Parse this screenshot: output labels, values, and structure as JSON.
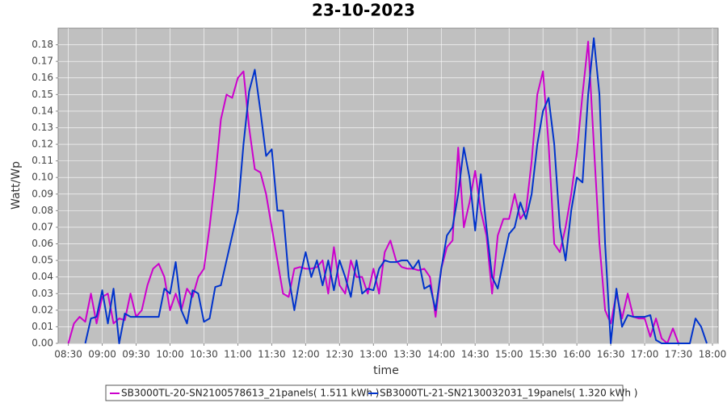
{
  "chart_data": {
    "type": "line",
    "title": "23-10-2023",
    "x_label": "time",
    "y_label": "Watt/Wp",
    "x": [
      510,
      515,
      520,
      525,
      530,
      535,
      540,
      545,
      550,
      555,
      560,
      565,
      570,
      575,
      580,
      585,
      590,
      595,
      600,
      605,
      610,
      615,
      620,
      625,
      630,
      635,
      640,
      645,
      650,
      655,
      660,
      665,
      670,
      675,
      680,
      685,
      690,
      695,
      700,
      705,
      710,
      715,
      720,
      725,
      730,
      735,
      740,
      745,
      750,
      755,
      760,
      765,
      770,
      775,
      780,
      785,
      790,
      795,
      800,
      805,
      810,
      815,
      820,
      825,
      830,
      835,
      840,
      845,
      850,
      855,
      860,
      865,
      870,
      875,
      880,
      885,
      890,
      895,
      900,
      905,
      910,
      915,
      920,
      925,
      930,
      935,
      940,
      945,
      950,
      955,
      960,
      965,
      970,
      975,
      980,
      985,
      990,
      995,
      1000,
      1005,
      1010,
      1015,
      1020,
      1025,
      1030,
      1035,
      1040,
      1045,
      1050,
      1055,
      1060,
      1065,
      1070,
      1075
    ],
    "series": [
      {
        "name": "SB3000TL-20-SN2100578613_21panels( 1.511 kWh )",
        "color": "#cc00cc",
        "values": [
          0,
          0.012,
          0.016,
          0.013,
          0.03,
          0.012,
          0.028,
          0.03,
          0.012,
          0.015,
          0.014,
          0.03,
          0.016,
          0.02,
          0.035,
          0.045,
          0.048,
          0.04,
          0.02,
          0.03,
          0.02,
          0.033,
          0.028,
          0.04,
          0.045,
          0.07,
          0.1,
          0.135,
          0.15,
          0.148,
          0.16,
          0.164,
          0.13,
          0.105,
          0.103,
          0.09,
          0.07,
          0.05,
          0.03,
          0.028,
          0.045,
          0.046,
          0.045,
          0.045,
          0.046,
          0.05,
          0.03,
          0.058,
          0.035,
          0.03,
          0.05,
          0.04,
          0.04,
          0.03,
          0.045,
          0.03,
          0.055,
          0.062,
          0.05,
          0.046,
          0.045,
          0.045,
          0.044,
          0.045,
          0.04,
          0.016,
          0.045,
          0.058,
          0.062,
          0.118,
          0.07,
          0.085,
          0.104,
          0.08,
          0.065,
          0.03,
          0.065,
          0.075,
          0.075,
          0.09,
          0.075,
          0.08,
          0.11,
          0.15,
          0.164,
          0.12,
          0.06,
          0.055,
          0.07,
          0.09,
          0.115,
          0.15,
          0.182,
          0.12,
          0.06,
          0.02,
          0.012,
          0.03,
          0.015,
          0.03,
          0.016,
          0.015,
          0.015,
          0.004,
          0.015,
          0.003,
          0,
          0.009,
          0,
          null,
          null,
          null,
          null,
          null
        ]
      },
      {
        "name": "SB3000TL-21-SN2130032031_19panels( 1.320 kWh )",
        "color": "#0033cc",
        "values": [
          null,
          null,
          null,
          0,
          0.015,
          0.016,
          0.032,
          0.012,
          0.033,
          0,
          0.018,
          0.016,
          0.016,
          0.016,
          0.016,
          0.016,
          0.016,
          0.033,
          0.03,
          0.049,
          0.02,
          0.012,
          0.032,
          0.03,
          0.013,
          0.015,
          0.034,
          0.035,
          0.05,
          0.065,
          0.08,
          0.12,
          0.152,
          0.165,
          0.14,
          0.113,
          0.117,
          0.08,
          0.08,
          0.04,
          0.02,
          0.04,
          0.055,
          0.04,
          0.05,
          0.035,
          0.05,
          0.032,
          0.05,
          0.04,
          0.028,
          0.05,
          0.03,
          0.033,
          0.032,
          0.045,
          0.05,
          0.049,
          0.049,
          0.05,
          0.05,
          0.045,
          0.05,
          0.033,
          0.035,
          0.02,
          0.045,
          0.065,
          0.07,
          0.09,
          0.118,
          0.1,
          0.068,
          0.102,
          0.07,
          0.04,
          0.033,
          0.05,
          0.066,
          0.07,
          0.085,
          0.075,
          0.09,
          0.12,
          0.14,
          0.148,
          0.12,
          0.07,
          0.05,
          0.08,
          0.1,
          0.097,
          0.15,
          0.184,
          0.15,
          0.06,
          0,
          0.033,
          0.01,
          0.017,
          0.016,
          0.016,
          0.016,
          0.017,
          0.002,
          0,
          0,
          0,
          0,
          0,
          0,
          0.015,
          0.01,
          0
        ]
      }
    ],
    "xlim": [
      501,
      1085
    ],
    "xticks": [
      {
        "value": 510,
        "label": "08:30"
      },
      {
        "value": 540,
        "label": "09:00"
      },
      {
        "value": 570,
        "label": "09:30"
      },
      {
        "value": 600,
        "label": "10:00"
      },
      {
        "value": 630,
        "label": "10:30"
      },
      {
        "value": 660,
        "label": "11:00"
      },
      {
        "value": 690,
        "label": "11:30"
      },
      {
        "value": 720,
        "label": "12:00"
      },
      {
        "value": 750,
        "label": "12:30"
      },
      {
        "value": 780,
        "label": "13:00"
      },
      {
        "value": 810,
        "label": "13:30"
      },
      {
        "value": 840,
        "label": "14:00"
      },
      {
        "value": 870,
        "label": "14:30"
      },
      {
        "value": 900,
        "label": "15:00"
      },
      {
        "value": 930,
        "label": "15:30"
      },
      {
        "value": 960,
        "label": "16:00"
      },
      {
        "value": 990,
        "label": "16:30"
      },
      {
        "value": 1020,
        "label": "17:00"
      },
      {
        "value": 1050,
        "label": "17:30"
      },
      {
        "value": 1080,
        "label": "18:00"
      }
    ],
    "ylim": [
      0,
      0.19
    ],
    "yticks": [
      {
        "value": 0,
        "label": "0.00"
      },
      {
        "value": 0.01,
        "label": "0.01"
      },
      {
        "value": 0.02,
        "label": "0.02"
      },
      {
        "value": 0.03,
        "label": "0.03"
      },
      {
        "value": 0.04,
        "label": "0.04"
      },
      {
        "value": 0.05,
        "label": "0.05"
      },
      {
        "value": 0.06,
        "label": "0.06"
      },
      {
        "value": 0.07,
        "label": "0.07"
      },
      {
        "value": 0.08,
        "label": "0.08"
      },
      {
        "value": 0.09,
        "label": "0.09"
      },
      {
        "value": 0.1,
        "label": "0.10"
      },
      {
        "value": 0.11,
        "label": "0.11"
      },
      {
        "value": 0.12,
        "label": "0.12"
      },
      {
        "value": 0.13,
        "label": "0.13"
      },
      {
        "value": 0.14,
        "label": "0.14"
      },
      {
        "value": 0.15,
        "label": "0.15"
      },
      {
        "value": 0.16,
        "label": "0.16"
      },
      {
        "value": 0.17,
        "label": "0.17"
      },
      {
        "value": 0.18,
        "label": "0.18"
      }
    ],
    "grid": true
  }
}
